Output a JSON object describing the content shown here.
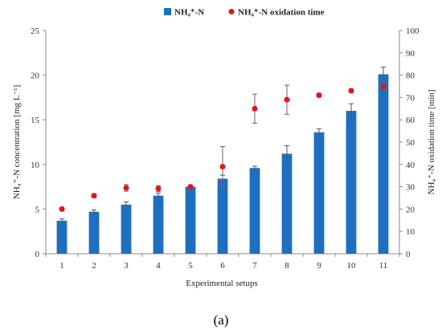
{
  "chart_data": {
    "type": "bar",
    "categories": [
      "1",
      "2",
      "3",
      "4",
      "5",
      "6",
      "7",
      "8",
      "9",
      "10",
      "11"
    ],
    "xlabel": "Experimental setups",
    "ylabel_left": "NH₄⁺-N concentration [mg L⁻¹]",
    "ylabel_right": "NH₄⁺-N oxidation time [min]",
    "ylim_left": [
      0,
      25
    ],
    "yticks_left": [
      "0",
      "5",
      "10",
      "15",
      "20",
      "25"
    ],
    "ylim_right": [
      0,
      100
    ],
    "yticks_right": [
      "0",
      "10",
      "20",
      "30",
      "40",
      "50",
      "60",
      "70",
      "80",
      "90",
      "100"
    ],
    "grid": false,
    "legend_position": "top-center",
    "series": [
      {
        "name": "NH₄⁺-N",
        "kind": "bar",
        "axis": "left",
        "color": "#1f6fc0",
        "values": [
          3.7,
          4.7,
          5.5,
          6.5,
          7.5,
          8.4,
          9.6,
          11.2,
          13.6,
          16.0,
          20.1
        ],
        "errors": [
          0.2,
          0.2,
          0.3,
          0.3,
          0.1,
          0.4,
          0.2,
          0.9,
          0.4,
          0.8,
          0.8
        ]
      },
      {
        "name": "NH₄⁺-N oxidation time",
        "kind": "scatter",
        "axis": "right",
        "color": "#e8111b",
        "values": [
          20,
          26,
          29.5,
          29.2,
          30,
          39,
          65,
          69,
          71,
          73,
          75
        ],
        "errors": [
          0.8,
          0.8,
          1.5,
          1.3,
          0.5,
          9,
          6.5,
          6.5,
          0.8,
          0.8,
          2
        ]
      }
    ]
  },
  "panel_label": "(a)"
}
